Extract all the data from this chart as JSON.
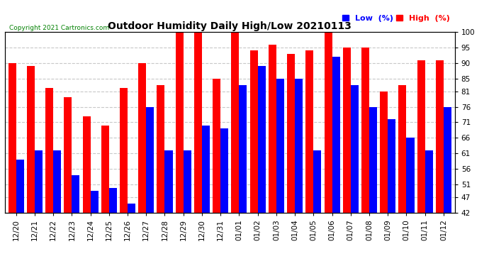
{
  "title": "Outdoor Humidity Daily High/Low 20210113",
  "copyright": "Copyright 2021 Cartronics.com",
  "legend_low": "Low  (%)",
  "legend_high": "High  (%)",
  "categories": [
    "12/20",
    "12/21",
    "12/22",
    "12/23",
    "12/24",
    "12/25",
    "12/26",
    "12/27",
    "12/28",
    "12/29",
    "12/30",
    "12/31",
    "01/01",
    "01/02",
    "01/03",
    "01/04",
    "01/05",
    "01/06",
    "01/07",
    "01/08",
    "01/09",
    "01/10",
    "01/11",
    "01/12"
  ],
  "high_values": [
    90,
    89,
    82,
    79,
    73,
    70,
    82,
    90,
    83,
    100,
    100,
    85,
    100,
    94,
    96,
    93,
    94,
    100,
    95,
    95,
    81,
    83,
    91,
    91
  ],
  "low_values": [
    59,
    62,
    62,
    54,
    49,
    50,
    45,
    76,
    62,
    62,
    70,
    69,
    83,
    89,
    85,
    85,
    62,
    92,
    83,
    76,
    72,
    66,
    62,
    76
  ],
  "high_color": "#FF0000",
  "low_color": "#0000FF",
  "bg_color": "#FFFFFF",
  "grid_color": "#C8C8C8",
  "ymin": 42,
  "ymax": 100,
  "yticks": [
    42,
    47,
    51,
    56,
    61,
    66,
    71,
    76,
    81,
    85,
    90,
    95,
    100
  ]
}
